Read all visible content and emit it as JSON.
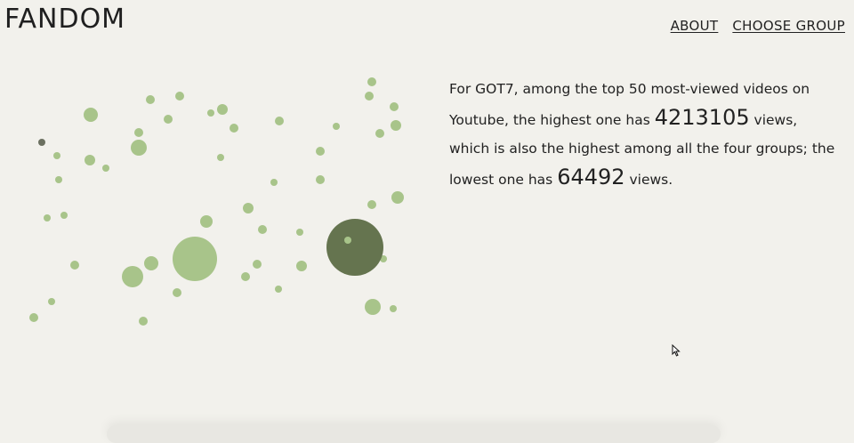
{
  "header": {
    "logo": "FANDOM",
    "nav": [
      {
        "label": "ABOUT"
      },
      {
        "label": "CHOOSE GROUP"
      }
    ]
  },
  "story": {
    "part1": "For GOT7, among the top 50 most-viewed videos on Youtube, the highest one has ",
    "highest_views": "4213105",
    "part2": " views, which is also the highest among all the four groups; the lowest one has ",
    "lowest_views": "64492",
    "part3": " views."
  },
  "colors": {
    "bubble": "#a8c48a",
    "highlight": "#65744f",
    "dark_dot": "#6b7060",
    "background": "#f2f1ec"
  },
  "chart_data": {
    "type": "scatter",
    "description_series": "videos",
    "max_views": 4213105,
    "min_views": 64492,
    "highlight_views": 4213105
  }
}
